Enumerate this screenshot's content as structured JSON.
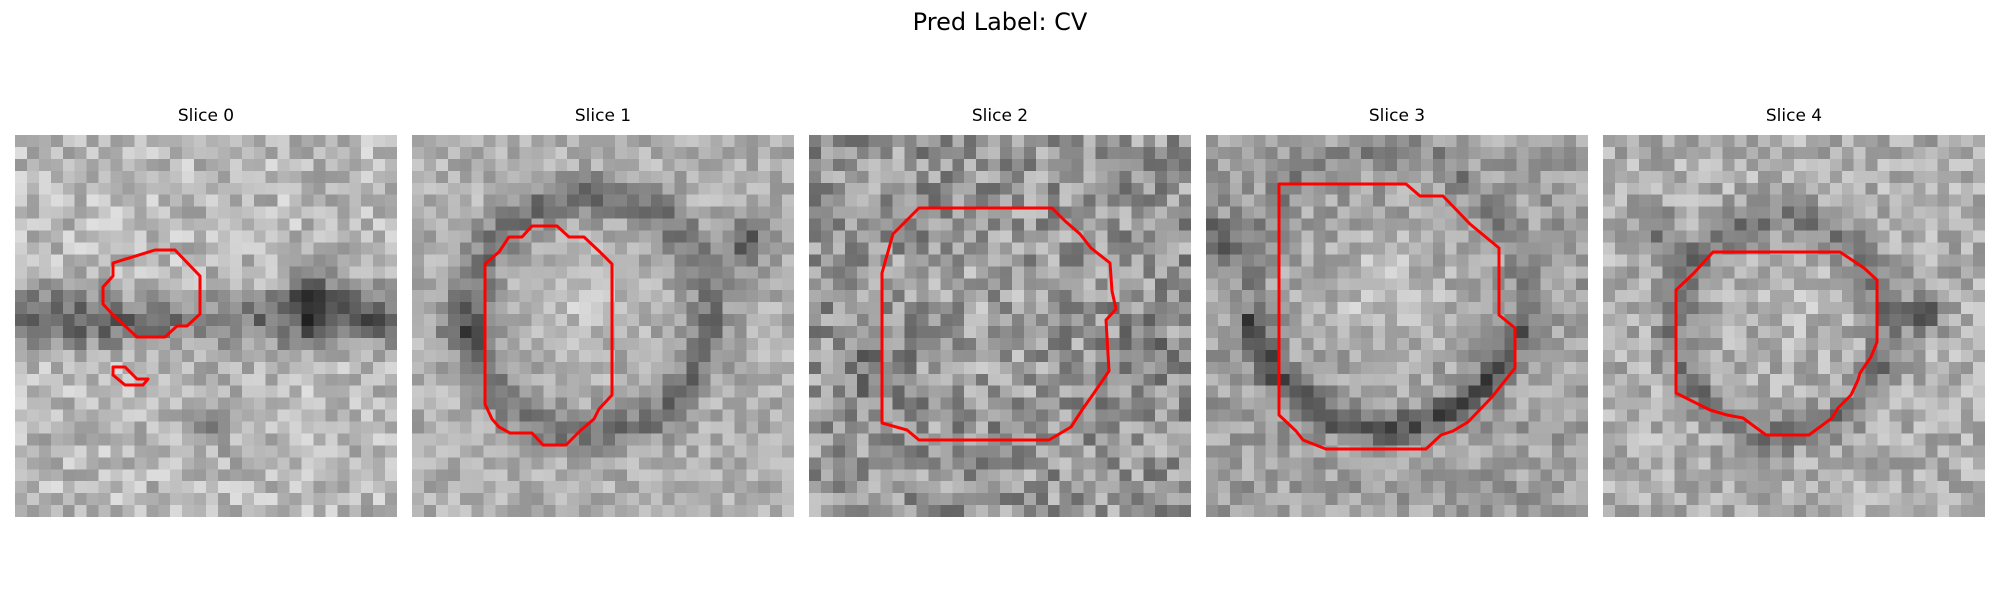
{
  "figure": {
    "title": "Pred Label: CV"
  },
  "contour_color": "#ff0000",
  "colormap": "grayscale",
  "slices": [
    {
      "title": "Slice 0"
    },
    {
      "title": "Slice 1"
    },
    {
      "title": "Slice 2"
    },
    {
      "title": "Slice 3"
    },
    {
      "title": "Slice 4"
    }
  ]
}
